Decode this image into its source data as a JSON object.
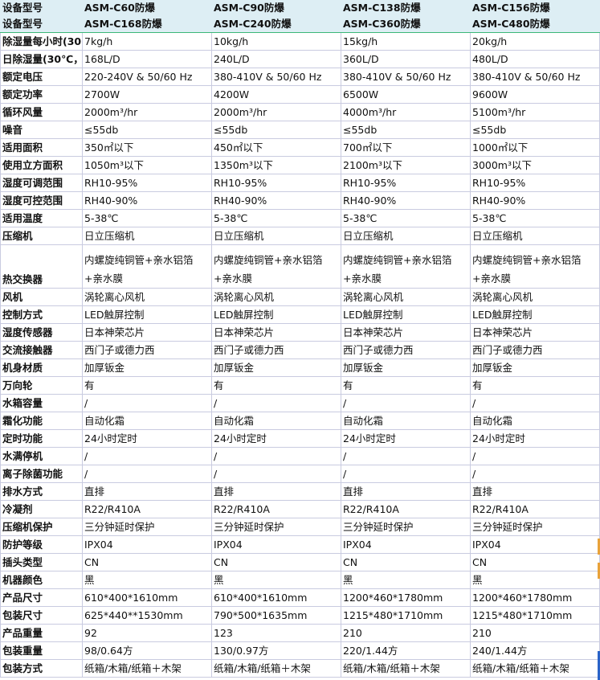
{
  "header_rows": [
    {
      "label": "设备型号",
      "models": [
        "ASM-C60防爆",
        "ASM-C90防爆",
        "ASM-C138防爆",
        "ASM-C156防爆"
      ]
    },
    {
      "label": "设备型号",
      "models": [
        "ASM-C168防爆",
        "ASM-C240防爆",
        "ASM-C360防爆",
        "ASM-C480防爆"
      ]
    }
  ],
  "rows": [
    {
      "label": "除湿量每小时(30",
      "values": [
        "7kg/h",
        "10kg/h",
        "15kg/h",
        "20kg/h"
      ]
    },
    {
      "label": "日除湿量(30℃，",
      "values": [
        "168L/D",
        "240L/D",
        "360L/D",
        "480L/D"
      ]
    },
    {
      "label": "额定电压",
      "values": [
        "220-240V & 50/60 Hz",
        "380-410V & 50/60 Hz",
        "380-410V & 50/60 Hz",
        "380-410V & 50/60 Hz"
      ]
    },
    {
      "label": "额定功率",
      "values": [
        "2700W",
        "4200W",
        "6500W",
        "9600W"
      ]
    },
    {
      "label": "循环风量",
      "values": [
        "2000m³/hr",
        "2000m³/hr",
        "4000m³/hr",
        "5100m³/hr"
      ]
    },
    {
      "label": "噪音",
      "values": [
        "≤55db",
        "≤55db",
        "≤55db",
        "≤55db"
      ]
    },
    {
      "label": "适用面积",
      "values": [
        "350㎡以下",
        "450㎡以下",
        "700㎡以下",
        "1000㎡以下"
      ]
    },
    {
      "label": "使用立方面积",
      "values": [
        "1050m³以下",
        "1350m³以下",
        "2100m³以下",
        "3000m³以下"
      ]
    },
    {
      "label": "湿度可调范围",
      "values": [
        "RH10-95%",
        "RH10-95%",
        "RH10-95%",
        "RH10-95%"
      ]
    },
    {
      "label": "湿度可控范围",
      "values": [
        "RH40-90%",
        "RH40-90%",
        "RH40-90%",
        "RH40-90%"
      ]
    },
    {
      "label": "适用温度",
      "values": [
        "5-38℃",
        "5-38℃",
        "5-38℃",
        "5-38℃"
      ]
    },
    {
      "label": "压缩机",
      "values": [
        "日立压缩机",
        "日立压缩机",
        "日立压缩机",
        "日立压缩机"
      ]
    },
    {
      "label": "热交换器",
      "tall": true,
      "values": [
        "内螺旋纯铜管+亲水铝箔+亲水膜",
        "内螺旋纯铜管+亲水铝箔+亲水膜",
        "内螺旋纯铜管+亲水铝箔+亲水膜",
        "内螺旋纯铜管+亲水铝箔+亲水膜"
      ]
    },
    {
      "label": "风机",
      "values": [
        "涡轮离心风机",
        "涡轮离心风机",
        "涡轮离心风机",
        "涡轮离心风机"
      ]
    },
    {
      "label": "控制方式",
      "values": [
        "LED触屏控制",
        "LED触屏控制",
        "LED触屏控制",
        "LED触屏控制"
      ]
    },
    {
      "label": "湿度传感器",
      "values": [
        "日本神荣芯片",
        "日本神荣芯片",
        "日本神荣芯片",
        "日本神荣芯片"
      ]
    },
    {
      "label": "交流接触器",
      "values": [
        "西门子或德力西",
        "西门子或德力西",
        "西门子或德力西",
        "西门子或德力西"
      ]
    },
    {
      "label": "机身材质",
      "values": [
        "加厚钣金",
        "加厚钣金",
        "加厚钣金",
        "加厚钣金"
      ]
    },
    {
      "label": "万向轮",
      "values": [
        "有",
        "有",
        "有",
        "有"
      ]
    },
    {
      "label": "水箱容量",
      "values": [
        "/",
        "/",
        "/",
        "/"
      ]
    },
    {
      "label": "霜化功能",
      "values": [
        "自动化霜",
        "自动化霜",
        "自动化霜",
        "自动化霜"
      ]
    },
    {
      "label": "定时功能",
      "values": [
        "24小时定时",
        "24小时定时",
        "24小时定时",
        "24小时定时"
      ]
    },
    {
      "label": "水满停机",
      "values": [
        "/",
        "/",
        "/",
        "/"
      ]
    },
    {
      "label": "离子除菌功能",
      "values": [
        "/",
        "/",
        "/",
        "/"
      ]
    },
    {
      "label": "排水方式",
      "values": [
        "直排",
        "直排",
        "直排",
        "直排"
      ]
    },
    {
      "label": "冷凝剂",
      "values": [
        "R22/R410A",
        "R22/R410A",
        "R22/R410A",
        "R22/R410A"
      ]
    },
    {
      "label": "压缩机保护",
      "values": [
        "三分钟延时保护",
        "三分钟延时保护",
        "三分钟延时保护",
        "三分钟延时保护"
      ]
    },
    {
      "label": "防护等级",
      "values": [
        "IPX04",
        "IPX04",
        "IPX04",
        "IPX04"
      ]
    },
    {
      "label": "插头类型",
      "values": [
        "CN",
        "CN",
        "CN",
        "CN"
      ]
    },
    {
      "label": "机器颜色",
      "values": [
        "黑",
        "黑",
        "黑",
        "黑"
      ]
    },
    {
      "label": "产品尺寸",
      "values": [
        "610*400*1610mm",
        "610*400*1610mm",
        "1200*460*1780mm",
        "1200*460*1780mm"
      ]
    },
    {
      "label": "包装尺寸",
      "values": [
        "625*440**1530mm",
        "790*500*1635mm",
        "1215*480*1710mm",
        "1215*480*1710mm"
      ]
    },
    {
      "label": "产品重量",
      "values": [
        "92",
        "123",
        "210",
        "210"
      ]
    },
    {
      "label": "包装重量",
      "values": [
        "98/0.64方",
        "130/0.97方",
        "220/1.44方",
        "240/1.44方"
      ]
    },
    {
      "label": "包装方式",
      "values": [
        "纸箱/木箱/纸箱＋木架",
        "纸箱/木箱/纸箱＋木架",
        "纸箱/木箱/纸箱＋木架",
        "纸箱/木箱/纸箱＋木架"
      ]
    }
  ]
}
